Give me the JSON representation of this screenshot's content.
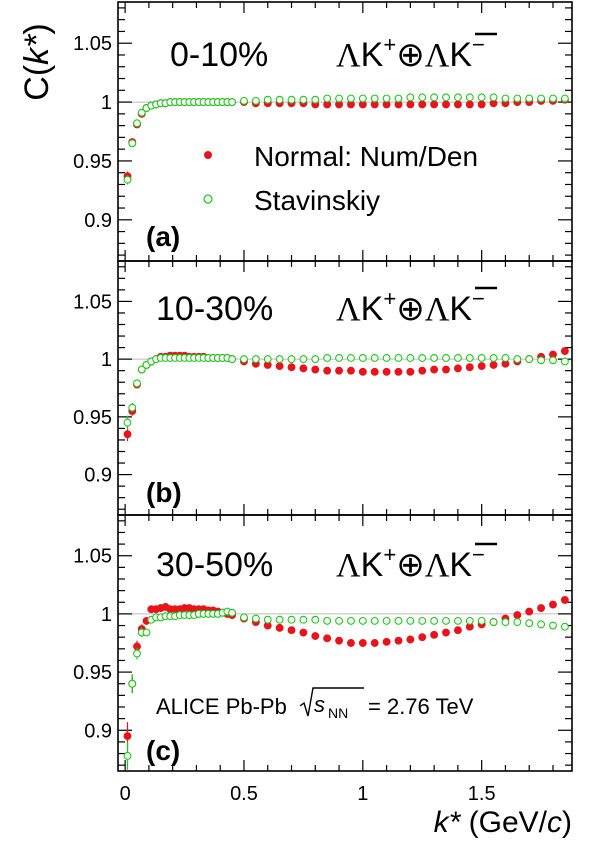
{
  "chart_data": {
    "type": "scatter",
    "ylabel_main": "C(",
    "ylabel_var": "k*",
    "ylabel_close": ")",
    "xlabel_var": "k*",
    "xlabel_unit_open": " (GeV/",
    "xlabel_unit_var": "c",
    "xlabel_unit_close": ")",
    "xlim": [
      -0.03,
      1.88
    ],
    "ylim": [
      0.865,
      1.085
    ],
    "x_tick_labels": [
      "0",
      "0.5",
      "1",
      "1.5"
    ],
    "x_ticks": [
      0,
      0.5,
      1,
      1.5
    ],
    "y_tick_labels": [
      "0.9",
      "0.95",
      "1",
      "1.05"
    ],
    "y_ticks": [
      0.9,
      0.95,
      1.0,
      1.05
    ],
    "reaction": {
      "lambda": "Λ",
      "kaon": "K",
      "plus": "+",
      "oplus": "⊕",
      "minus": "−"
    },
    "legend": {
      "normal_label": "Normal: Num/Den",
      "stavinskiy_label": "Stavinskiy"
    },
    "system_label": {
      "prefix": "ALICE Pb-Pb",
      "sqrt_s": "s",
      "sub": "NN",
      "value": "= 2.76 TeV"
    },
    "colors": {
      "normal": "#e8141c",
      "stavinskiy": "#1ec81e",
      "baseline": "#bbbbbb"
    },
    "panels": [
      {
        "label": "(a)",
        "centrality": "0-10%",
        "normal": {
          "x": [
            0.01,
            0.03,
            0.05,
            0.07,
            0.09,
            0.11,
            0.13,
            0.15,
            0.17,
            0.19,
            0.21,
            0.23,
            0.25,
            0.27,
            0.29,
            0.31,
            0.33,
            0.35,
            0.37,
            0.39,
            0.41,
            0.43,
            0.45,
            0.5,
            0.55,
            0.6,
            0.65,
            0.7,
            0.75,
            0.8,
            0.85,
            0.9,
            0.95,
            1.0,
            1.05,
            1.1,
            1.15,
            1.2,
            1.25,
            1.3,
            1.35,
            1.4,
            1.45,
            1.5,
            1.55,
            1.6,
            1.65,
            1.7,
            1.75,
            1.8,
            1.85
          ],
          "y": [
            0.937,
            0.966,
            0.981,
            0.99,
            0.995,
            0.997,
            0.998,
            0.999,
            0.999,
            1.0,
            1.0,
            1.0,
            1.0,
            1.0,
            1.0,
            1.0,
            1.0,
            1.0,
            1.0,
            1.0,
            1.0,
            1.0,
            1.0,
            1.0,
            0.999,
            0.999,
            0.999,
            0.999,
            0.999,
            0.998,
            0.998,
            0.998,
            0.998,
            0.998,
            0.998,
            0.998,
            0.998,
            0.998,
            0.998,
            0.998,
            0.998,
            0.998,
            0.998,
            0.998,
            0.999,
            0.999,
            1.0,
            1.0,
            1.001,
            1.001,
            1.002
          ],
          "err": [
            0.004,
            0.003,
            0.002,
            0.002,
            0.002,
            0.001,
            0.001,
            0.001,
            0.001,
            0.001,
            0.001,
            0.001,
            0.001,
            0.001,
            0.001,
            0.001,
            0.001,
            0.001,
            0.001,
            0.001,
            0.001,
            0.001,
            0.001,
            0.001,
            0.001,
            0.001,
            0.001,
            0.001,
            0.001,
            0.001,
            0.001,
            0.001,
            0.001,
            0.001,
            0.001,
            0.001,
            0.001,
            0.001,
            0.001,
            0.001,
            0.001,
            0.001,
            0.001,
            0.001,
            0.001,
            0.001,
            0.001,
            0.001,
            0.001,
            0.001,
            0.001
          ]
        },
        "stavinskiy": {
          "x": [
            0.01,
            0.03,
            0.05,
            0.07,
            0.09,
            0.11,
            0.13,
            0.15,
            0.17,
            0.19,
            0.21,
            0.23,
            0.25,
            0.27,
            0.29,
            0.31,
            0.33,
            0.35,
            0.37,
            0.39,
            0.41,
            0.43,
            0.45,
            0.5,
            0.55,
            0.6,
            0.65,
            0.7,
            0.75,
            0.8,
            0.85,
            0.9,
            0.95,
            1.0,
            1.05,
            1.1,
            1.15,
            1.2,
            1.25,
            1.3,
            1.35,
            1.4,
            1.45,
            1.5,
            1.55,
            1.6,
            1.65,
            1.7,
            1.75,
            1.8,
            1.85
          ],
          "y": [
            0.934,
            0.965,
            0.982,
            0.991,
            0.995,
            0.997,
            0.998,
            0.999,
            0.999,
            1.0,
            1.0,
            1.0,
            1.0,
            1.0,
            1.0,
            1.0,
            1.0,
            1.0,
            1.0,
            1.0,
            1.0,
            1.0,
            1.0,
            1.001,
            1.001,
            1.002,
            1.002,
            1.002,
            1.002,
            1.002,
            1.003,
            1.003,
            1.003,
            1.003,
            1.003,
            1.003,
            1.003,
            1.004,
            1.004,
            1.004,
            1.004,
            1.004,
            1.004,
            1.004,
            1.004,
            1.003,
            1.003,
            1.003,
            1.003,
            1.003,
            1.003
          ],
          "err": [
            0.004,
            0.003,
            0.002,
            0.002,
            0.002,
            0.001,
            0.001,
            0.001,
            0.001,
            0.001,
            0.001,
            0.001,
            0.001,
            0.001,
            0.001,
            0.001,
            0.001,
            0.001,
            0.001,
            0.001,
            0.001,
            0.001,
            0.001,
            0.001,
            0.001,
            0.001,
            0.001,
            0.001,
            0.001,
            0.001,
            0.001,
            0.001,
            0.001,
            0.001,
            0.001,
            0.001,
            0.001,
            0.001,
            0.001,
            0.001,
            0.001,
            0.001,
            0.001,
            0.001,
            0.001,
            0.001,
            0.001,
            0.001,
            0.001,
            0.001,
            0.001
          ]
        }
      },
      {
        "label": "(b)",
        "centrality": "10-30%",
        "normal": {
          "x": [
            0.01,
            0.03,
            0.05,
            0.07,
            0.09,
            0.11,
            0.13,
            0.15,
            0.17,
            0.19,
            0.21,
            0.23,
            0.25,
            0.27,
            0.29,
            0.31,
            0.33,
            0.35,
            0.37,
            0.39,
            0.41,
            0.43,
            0.45,
            0.5,
            0.55,
            0.6,
            0.65,
            0.7,
            0.75,
            0.8,
            0.85,
            0.9,
            0.95,
            1.0,
            1.05,
            1.1,
            1.15,
            1.2,
            1.25,
            1.3,
            1.35,
            1.4,
            1.45,
            1.5,
            1.55,
            1.6,
            1.65,
            1.7,
            1.75,
            1.8,
            1.85
          ],
          "y": [
            0.935,
            0.955,
            0.978,
            0.991,
            0.995,
            0.998,
            1.0,
            1.002,
            1.002,
            1.003,
            1.003,
            1.003,
            1.003,
            1.002,
            1.002,
            1.002,
            1.002,
            1.001,
            1.001,
            1.001,
            1.001,
            1.001,
            1.0,
            0.998,
            0.996,
            0.995,
            0.994,
            0.993,
            0.992,
            0.991,
            0.99,
            0.99,
            0.99,
            0.989,
            0.989,
            0.989,
            0.989,
            0.989,
            0.99,
            0.991,
            0.991,
            0.992,
            0.993,
            0.994,
            0.995,
            0.996,
            0.998,
            1.0,
            1.002,
            1.004,
            1.007
          ],
          "err": [
            0.006,
            0.004,
            0.003,
            0.002,
            0.002,
            0.002,
            0.001,
            0.001,
            0.001,
            0.001,
            0.001,
            0.001,
            0.001,
            0.001,
            0.001,
            0.001,
            0.001,
            0.001,
            0.001,
            0.001,
            0.001,
            0.001,
            0.001,
            0.001,
            0.001,
            0.001,
            0.001,
            0.001,
            0.001,
            0.001,
            0.001,
            0.001,
            0.001,
            0.001,
            0.001,
            0.001,
            0.001,
            0.001,
            0.001,
            0.001,
            0.001,
            0.001,
            0.001,
            0.001,
            0.001,
            0.001,
            0.001,
            0.001,
            0.001,
            0.001,
            0.001
          ]
        },
        "stavinskiy": {
          "x": [
            0.01,
            0.03,
            0.05,
            0.07,
            0.09,
            0.11,
            0.13,
            0.15,
            0.17,
            0.19,
            0.21,
            0.23,
            0.25,
            0.27,
            0.29,
            0.31,
            0.33,
            0.35,
            0.37,
            0.39,
            0.41,
            0.43,
            0.45,
            0.5,
            0.55,
            0.6,
            0.65,
            0.7,
            0.75,
            0.8,
            0.85,
            0.9,
            0.95,
            1.0,
            1.05,
            1.1,
            1.15,
            1.2,
            1.25,
            1.3,
            1.35,
            1.4,
            1.45,
            1.5,
            1.55,
            1.6,
            1.65,
            1.7,
            1.75,
            1.8,
            1.85
          ],
          "y": [
            0.945,
            0.958,
            0.979,
            0.991,
            0.995,
            0.998,
            1.0,
            1.001,
            1.001,
            1.001,
            1.001,
            1.001,
            1.001,
            1.001,
            1.001,
            1.001,
            1.001,
            1.001,
            1.001,
            1.001,
            1.001,
            1.001,
            1.0,
            1.0,
            1.0,
            1.0,
            1.0,
            1.0,
            1.0,
            1.0,
            1.001,
            1.001,
            1.001,
            1.001,
            1.001,
            1.001,
            1.001,
            1.001,
            1.001,
            1.001,
            1.001,
            1.001,
            1.001,
            1.001,
            1.001,
            1.001,
            1.0,
            1.0,
            0.999,
            0.999,
            0.998
          ],
          "err": [
            0.006,
            0.004,
            0.003,
            0.002,
            0.002,
            0.002,
            0.001,
            0.001,
            0.001,
            0.001,
            0.001,
            0.001,
            0.001,
            0.001,
            0.001,
            0.001,
            0.001,
            0.001,
            0.001,
            0.001,
            0.001,
            0.001,
            0.001,
            0.001,
            0.001,
            0.001,
            0.001,
            0.001,
            0.001,
            0.001,
            0.001,
            0.001,
            0.001,
            0.001,
            0.001,
            0.001,
            0.001,
            0.001,
            0.001,
            0.001,
            0.001,
            0.001,
            0.001,
            0.001,
            0.001,
            0.001,
            0.001,
            0.001,
            0.001,
            0.001,
            0.001
          ]
        }
      },
      {
        "label": "(c)",
        "centrality": "30-50%",
        "normal": {
          "x": [
            0.01,
            0.03,
            0.05,
            0.07,
            0.09,
            0.11,
            0.13,
            0.15,
            0.17,
            0.19,
            0.21,
            0.23,
            0.25,
            0.27,
            0.29,
            0.31,
            0.33,
            0.35,
            0.37,
            0.39,
            0.41,
            0.43,
            0.45,
            0.5,
            0.55,
            0.6,
            0.65,
            0.7,
            0.75,
            0.8,
            0.85,
            0.9,
            0.95,
            1.0,
            1.05,
            1.1,
            1.15,
            1.2,
            1.25,
            1.3,
            1.35,
            1.4,
            1.45,
            1.5,
            1.55,
            1.6,
            1.65,
            1.7,
            1.75,
            1.8,
            1.85
          ],
          "y": [
            0.895,
            0.94,
            0.972,
            0.987,
            0.994,
            1.004,
            1.004,
            1.005,
            1.006,
            1.004,
            1.004,
            1.004,
            1.005,
            1.005,
            1.004,
            1.004,
            1.004,
            1.003,
            1.003,
            1.002,
            1.001,
            1.0,
            0.999,
            0.996,
            0.993,
            0.99,
            0.988,
            0.986,
            0.984,
            0.981,
            0.979,
            0.977,
            0.975,
            0.975,
            0.975,
            0.976,
            0.977,
            0.978,
            0.98,
            0.982,
            0.984,
            0.986,
            0.989,
            0.991,
            0.993,
            0.996,
            0.999,
            1.002,
            1.005,
            1.008,
            1.012
          ],
          "err": [
            0.012,
            0.008,
            0.005,
            0.004,
            0.003,
            0.003,
            0.002,
            0.002,
            0.002,
            0.002,
            0.002,
            0.002,
            0.002,
            0.002,
            0.002,
            0.002,
            0.002,
            0.002,
            0.002,
            0.002,
            0.002,
            0.002,
            0.002,
            0.002,
            0.002,
            0.002,
            0.002,
            0.002,
            0.002,
            0.002,
            0.002,
            0.002,
            0.002,
            0.002,
            0.002,
            0.002,
            0.002,
            0.002,
            0.002,
            0.002,
            0.002,
            0.002,
            0.002,
            0.002,
            0.002,
            0.002,
            0.002,
            0.002,
            0.002,
            0.002,
            0.002
          ]
        },
        "stavinskiy": {
          "x": [
            0.01,
            0.03,
            0.05,
            0.07,
            0.09,
            0.11,
            0.13,
            0.15,
            0.17,
            0.19,
            0.21,
            0.23,
            0.25,
            0.27,
            0.29,
            0.31,
            0.33,
            0.35,
            0.37,
            0.39,
            0.41,
            0.43,
            0.45,
            0.5,
            0.55,
            0.6,
            0.65,
            0.7,
            0.75,
            0.8,
            0.85,
            0.9,
            0.95,
            1.0,
            1.05,
            1.1,
            1.15,
            1.2,
            1.25,
            1.3,
            1.35,
            1.4,
            1.45,
            1.5,
            1.55,
            1.6,
            1.65,
            1.7,
            1.75,
            1.8,
            1.85
          ],
          "y": [
            0.878,
            0.94,
            0.966,
            0.984,
            0.984,
            0.995,
            0.997,
            0.997,
            0.998,
            0.998,
            0.998,
            0.999,
            0.999,
            0.999,
            0.999,
            1.0,
            1.0,
            1.0,
            1.0,
            1.0,
            1.001,
            1.002,
            1.001,
            0.997,
            0.996,
            0.995,
            0.995,
            0.995,
            0.995,
            0.995,
            0.994,
            0.994,
            0.994,
            0.994,
            0.994,
            0.994,
            0.994,
            0.994,
            0.994,
            0.994,
            0.994,
            0.994,
            0.994,
            0.994,
            0.993,
            0.993,
            0.993,
            0.992,
            0.991,
            0.99,
            0.989
          ],
          "err": [
            0.012,
            0.008,
            0.005,
            0.004,
            0.003,
            0.003,
            0.002,
            0.002,
            0.002,
            0.002,
            0.002,
            0.002,
            0.002,
            0.002,
            0.002,
            0.002,
            0.002,
            0.002,
            0.002,
            0.002,
            0.002,
            0.002,
            0.002,
            0.002,
            0.002,
            0.002,
            0.002,
            0.002,
            0.002,
            0.002,
            0.002,
            0.002,
            0.002,
            0.002,
            0.002,
            0.002,
            0.002,
            0.002,
            0.002,
            0.002,
            0.002,
            0.002,
            0.002,
            0.002,
            0.002,
            0.002,
            0.002,
            0.002,
            0.002,
            0.002,
            0.002
          ]
        }
      }
    ]
  }
}
